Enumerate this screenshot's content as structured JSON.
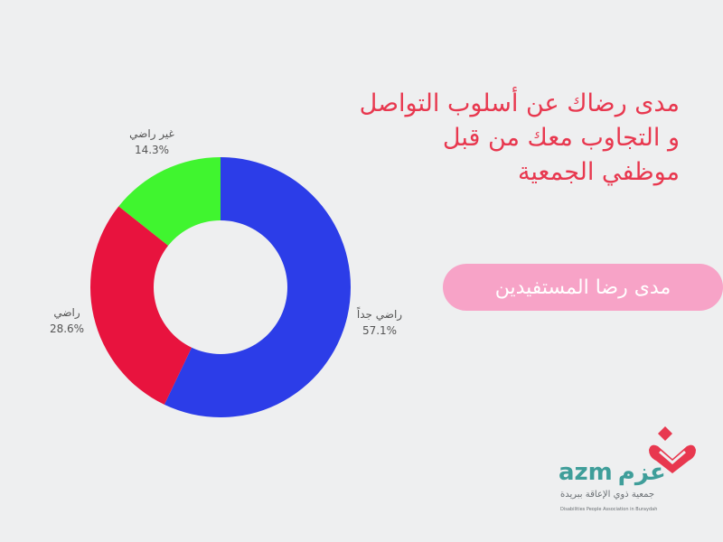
{
  "title": {
    "line1": "مدى رضاك عن أسلوب التواصل",
    "line2": "و التجاوب معك من قبل",
    "line3": "موظفي الجمعية"
  },
  "pill_label": "مدى رضا المستفيدين",
  "colors": {
    "background": "#eeeff0",
    "title": "#e8384f",
    "pill": "#f7a3c7",
    "logo_teal": "#3f9e9a",
    "logo_red": "#e8384f"
  },
  "logo": {
    "latin_name": "azm",
    "arabic_name": "عزم",
    "arabic_subtitle": "جمعية ذوي الإعاقة ببريدة",
    "english_subtitle": "Disabilities People Association in Buraydah"
  },
  "chart_data": {
    "type": "pie",
    "donut": true,
    "slices": [
      {
        "label": "راضي جداً",
        "value_label": "57.1%",
        "value": 57.1,
        "color": "#2c3de8"
      },
      {
        "label": "راضي",
        "value_label": "28.6%",
        "value": 28.6,
        "color": "#e8133e"
      },
      {
        "label": "غير راضي",
        "value_label": "14.3%",
        "value": 14.3,
        "color": "#40f52f"
      }
    ]
  }
}
